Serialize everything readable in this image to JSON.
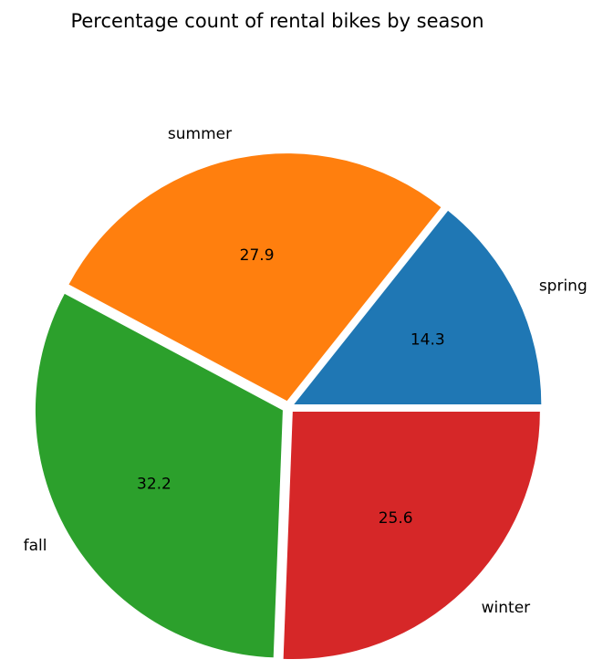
{
  "chart_data": {
    "type": "pie",
    "title": "Percentage count of rental bikes by season",
    "categories": [
      "spring",
      "summer",
      "fall",
      "winter"
    ],
    "values": [
      14.3,
      27.9,
      32.2,
      25.6
    ],
    "value_labels": [
      "14.3",
      "27.9",
      "32.2",
      "25.6"
    ],
    "colors": [
      "#1f77b4",
      "#ff7f0e",
      "#2ca02c",
      "#d62728"
    ],
    "start_angle_deg": 0,
    "direction": "counterclockwise",
    "exploded": true,
    "legend": "none"
  }
}
